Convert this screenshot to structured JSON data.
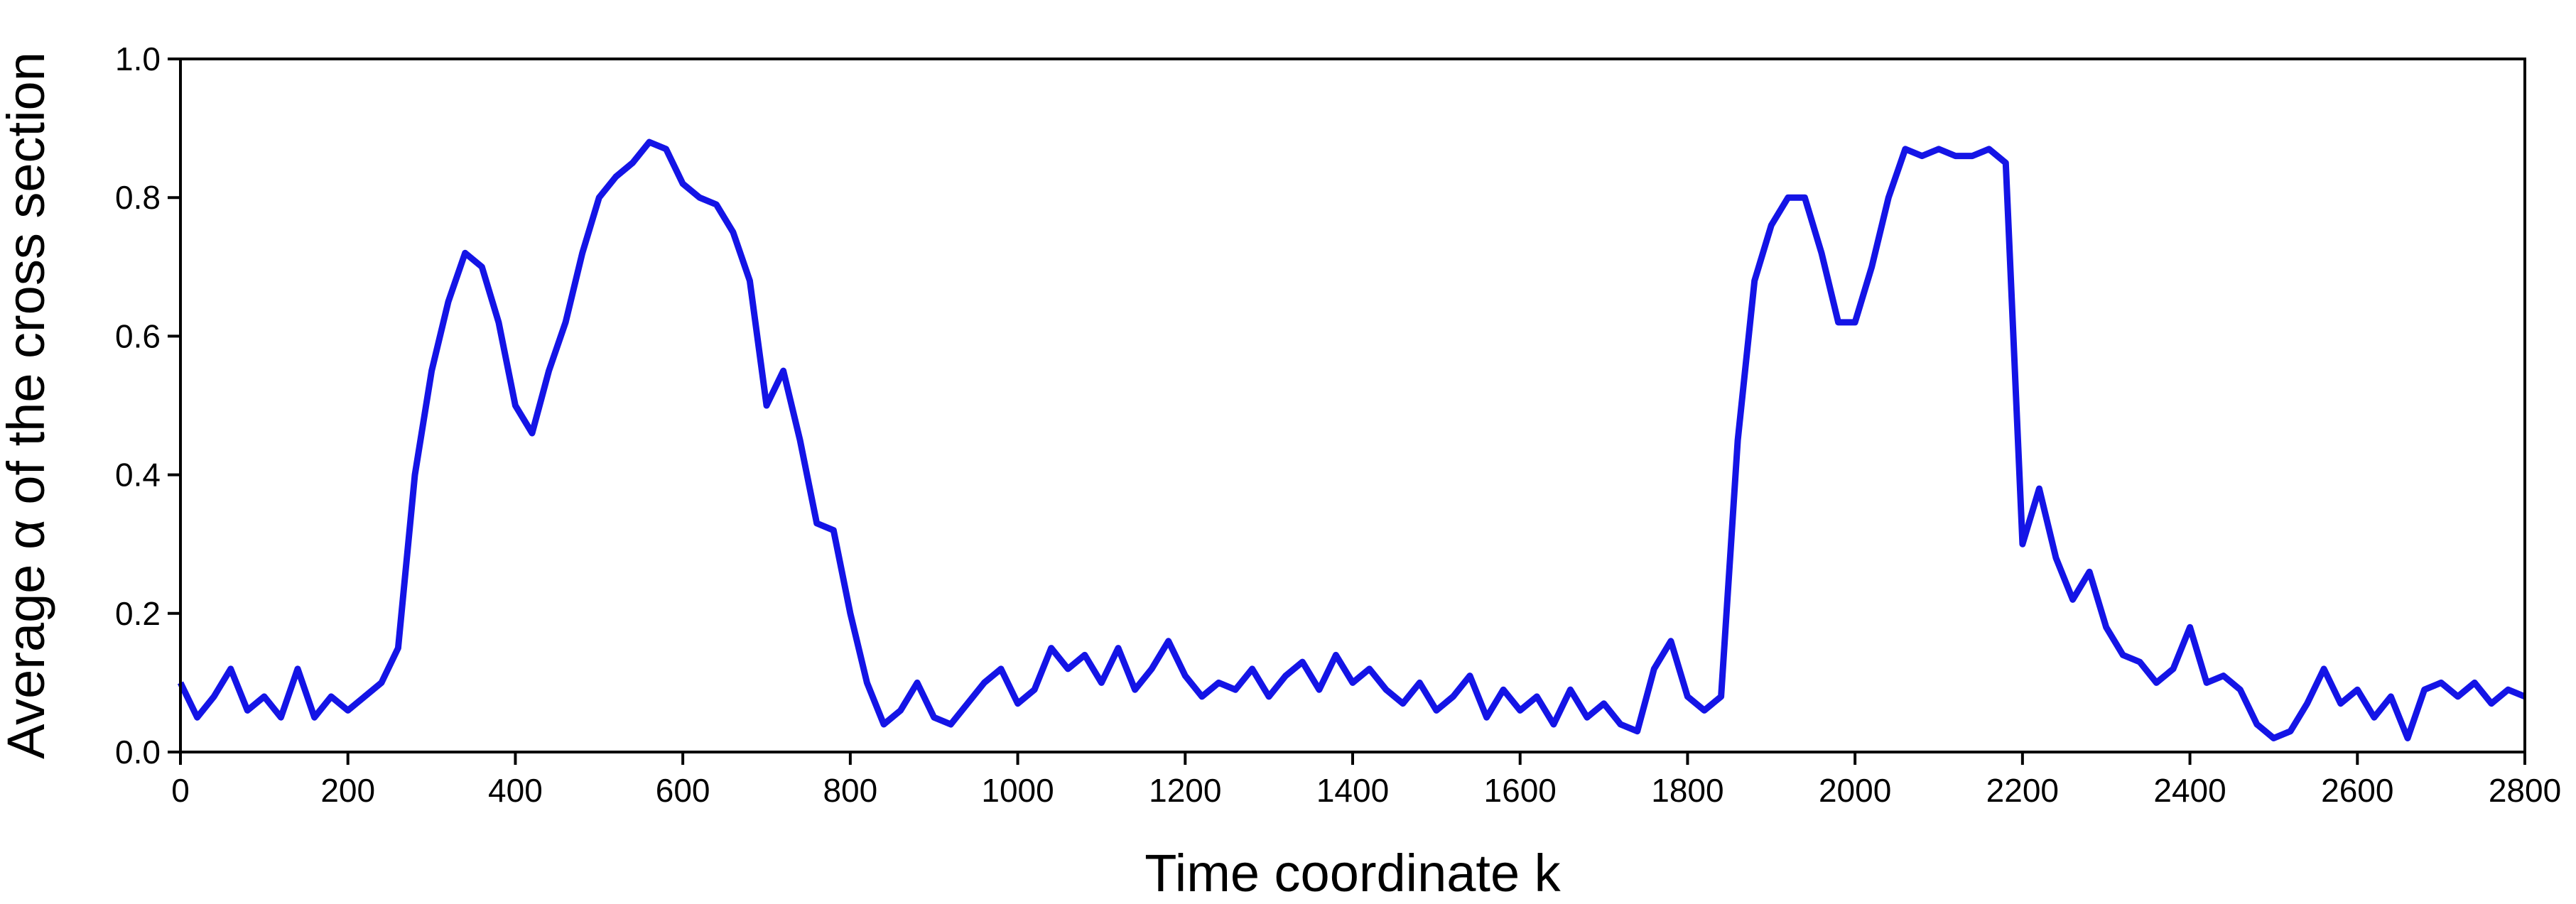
{
  "chart_data": {
    "type": "line",
    "x_label": "Time coordinate k",
    "y_label": "Average α of the cross section",
    "xlim": [
      0,
      2800
    ],
    "ylim": [
      0,
      1
    ],
    "xticks": [
      0,
      200,
      400,
      600,
      800,
      1000,
      1200,
      1400,
      1600,
      1800,
      2000,
      2200,
      2400,
      2600,
      2800
    ],
    "yticks": [
      {
        "value": 0,
        "label": "0.0"
      },
      0.2,
      0.4,
      0.6,
      0.8,
      {
        "value": 1,
        "label": "1.0"
      }
    ],
    "grid": false,
    "x": [
      0,
      20,
      40,
      60,
      80,
      100,
      120,
      140,
      160,
      180,
      200,
      220,
      240,
      260,
      280,
      300,
      320,
      340,
      360,
      380,
      400,
      420,
      440,
      460,
      480,
      500,
      520,
      540,
      560,
      580,
      600,
      620,
      640,
      660,
      680,
      700,
      720,
      740,
      760,
      780,
      800,
      820,
      840,
      860,
      880,
      900,
      920,
      940,
      960,
      980,
      1000,
      1020,
      1040,
      1060,
      1080,
      1100,
      1120,
      1140,
      1160,
      1180,
      1200,
      1220,
      1240,
      1260,
      1280,
      1300,
      1320,
      1340,
      1360,
      1380,
      1400,
      1420,
      1440,
      1460,
      1480,
      1500,
      1520,
      1540,
      1560,
      1580,
      1600,
      1620,
      1640,
      1660,
      1680,
      1700,
      1720,
      1740,
      1760,
      1780,
      1800,
      1820,
      1840,
      1860,
      1880,
      1900,
      1920,
      1940,
      1960,
      1980,
      2000,
      2020,
      2040,
      2060,
      2080,
      2100,
      2120,
      2140,
      2160,
      2180,
      2200,
      2220,
      2240,
      2260,
      2280,
      2300,
      2320,
      2340,
      2360,
      2380,
      2400,
      2420,
      2440,
      2460,
      2480,
      2500,
      2520,
      2540,
      2560,
      2580,
      2600,
      2620,
      2640,
      2660,
      2680,
      2700,
      2720,
      2740,
      2760,
      2780,
      2800
    ],
    "series": [
      {
        "color": "#1414e6",
        "values": [
          0.1,
          0.05,
          0.08,
          0.12,
          0.06,
          0.08,
          0.05,
          0.12,
          0.05,
          0.08,
          0.06,
          0.08,
          0.1,
          0.15,
          0.4,
          0.55,
          0.65,
          0.72,
          0.7,
          0.62,
          0.5,
          0.46,
          0.55,
          0.62,
          0.72,
          0.8,
          0.83,
          0.85,
          0.88,
          0.87,
          0.82,
          0.8,
          0.79,
          0.75,
          0.68,
          0.5,
          0.55,
          0.45,
          0.33,
          0.32,
          0.2,
          0.1,
          0.04,
          0.06,
          0.1,
          0.05,
          0.04,
          0.07,
          0.1,
          0.12,
          0.07,
          0.09,
          0.15,
          0.12,
          0.14,
          0.1,
          0.15,
          0.09,
          0.12,
          0.16,
          0.11,
          0.08,
          0.1,
          0.09,
          0.12,
          0.08,
          0.11,
          0.13,
          0.09,
          0.14,
          0.1,
          0.12,
          0.09,
          0.07,
          0.1,
          0.06,
          0.08,
          0.11,
          0.05,
          0.09,
          0.06,
          0.08,
          0.04,
          0.09,
          0.05,
          0.07,
          0.04,
          0.03,
          0.12,
          0.16,
          0.08,
          0.06,
          0.08,
          0.45,
          0.68,
          0.76,
          0.8,
          0.8,
          0.72,
          0.62,
          0.62,
          0.7,
          0.8,
          0.87,
          0.86,
          0.87,
          0.86,
          0.86,
          0.87,
          0.85,
          0.3,
          0.38,
          0.28,
          0.22,
          0.26,
          0.18,
          0.14,
          0.13,
          0.1,
          0.12,
          0.18,
          0.1,
          0.11,
          0.09,
          0.04,
          0.02,
          0.03,
          0.07,
          0.12,
          0.07,
          0.09,
          0.05,
          0.08,
          0.02,
          0.09,
          0.1,
          0.08,
          0.1,
          0.07,
          0.09,
          0.08
        ]
      }
    ]
  }
}
